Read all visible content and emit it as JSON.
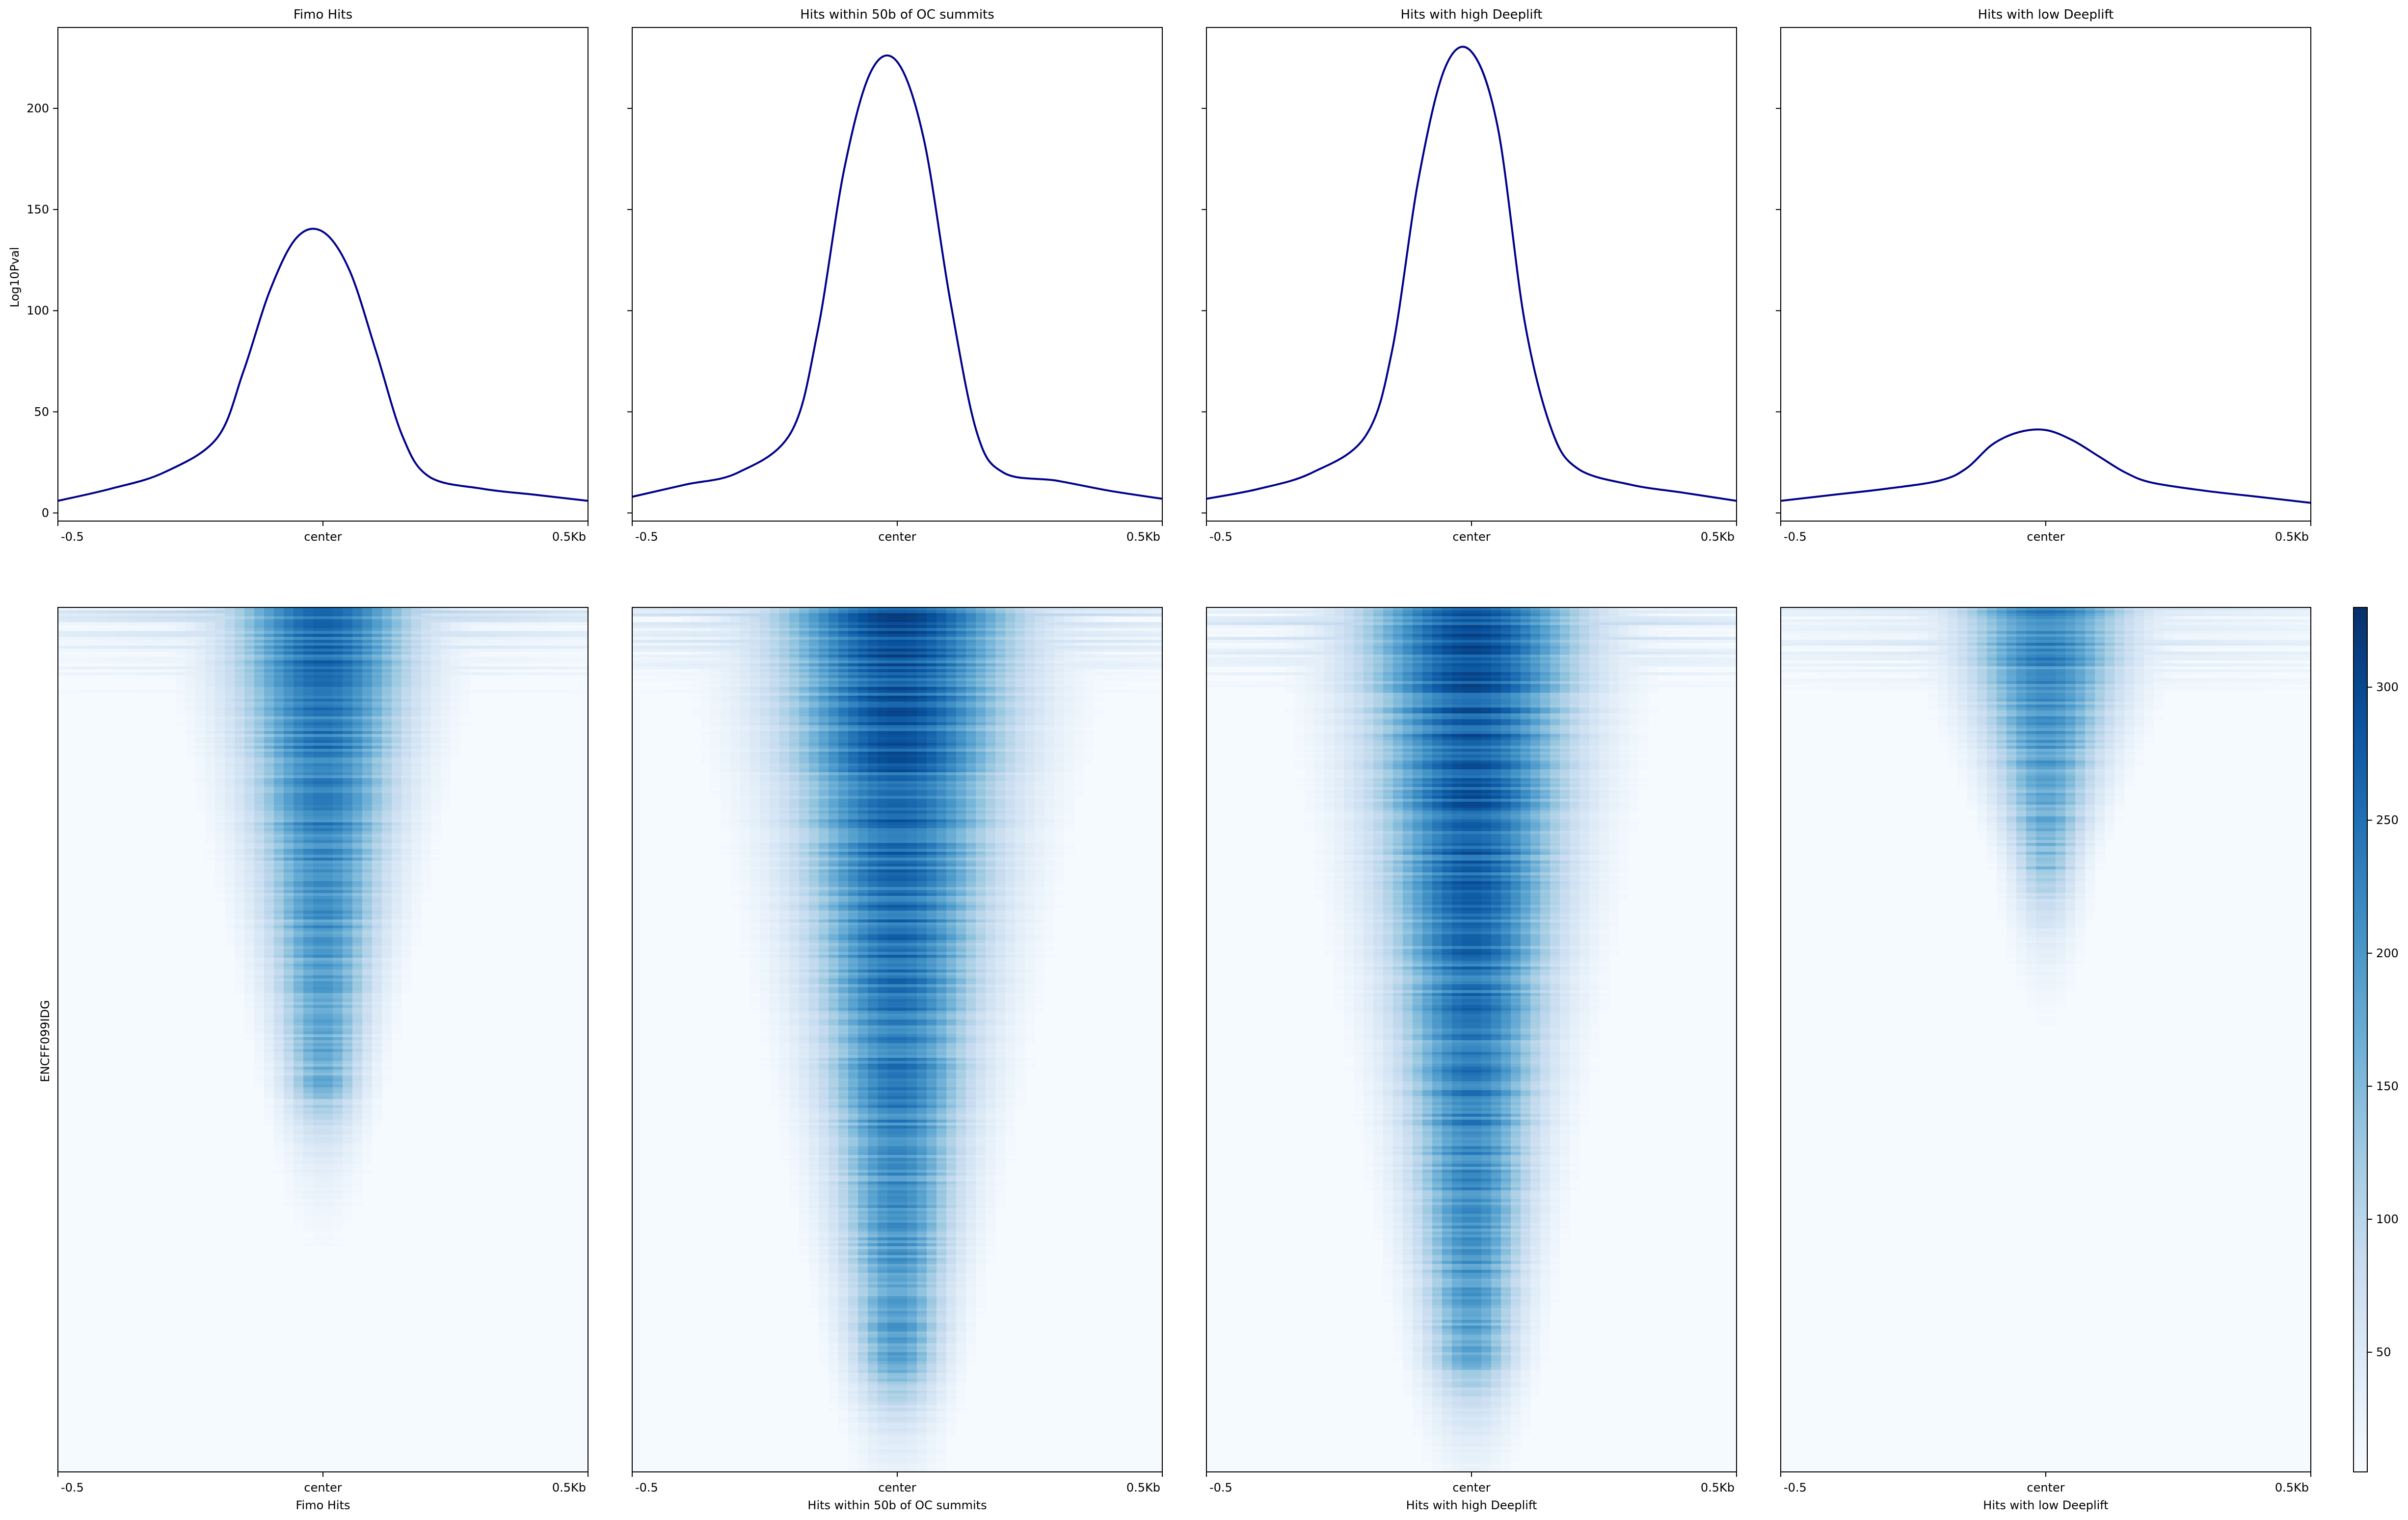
{
  "chart_data": {
    "type": "line",
    "description_panels": 4,
    "x_ticks": [
      "-0.5",
      "center",
      "0.5Kb"
    ],
    "x_range": [
      -500,
      500
    ],
    "profile": {
      "ylabel": "Log10Pval",
      "ylim": [
        -4,
        240
      ],
      "y_ticks": [
        0,
        50,
        100,
        150,
        200
      ],
      "x": [
        -500,
        -400,
        -300,
        -200,
        -150,
        -100,
        -50,
        0,
        50,
        100,
        150,
        200,
        300,
        400,
        500
      ],
      "line_color": "#00008b"
    },
    "heatmap": {
      "ylabel": "ENCFF099IDG",
      "colormap": "Blues",
      "colorbar_ticks": [
        50,
        100,
        150,
        200,
        250,
        300
      ],
      "colorbar_range": [
        5,
        330
      ],
      "colorbar_low": "#f7fbff",
      "colorbar_high": "#08306b"
    },
    "panels": [
      {
        "title": "Fimo Hits",
        "xlabel": "Fimo Hits",
        "y": [
          6,
          12,
          20,
          37,
          70,
          110,
          136,
          139,
          120,
          80,
          38,
          18,
          12,
          9,
          6
        ],
        "heat_peak": 290,
        "heat_halfwidth_top": 0.17,
        "heat_halfwidth_bottom": 0.07,
        "heat_extent": 0.55
      },
      {
        "title": "Hits within 50b of OC summits",
        "xlabel": "Hits within 50b of OC summits",
        "y": [
          8,
          14,
          20,
          40,
          90,
          170,
          218,
          223,
          185,
          105,
          40,
          20,
          16,
          11,
          7
        ],
        "heat_peak": 320,
        "heat_halfwidth_top": 0.22,
        "heat_halfwidth_bottom": 0.08,
        "heat_extent": 0.87
      },
      {
        "title": "Hits with high Deeplift",
        "xlabel": "Hits with high Deeplift",
        "y": [
          7,
          12,
          20,
          38,
          80,
          165,
          220,
          228,
          190,
          95,
          42,
          22,
          14,
          10,
          6
        ],
        "heat_peak": 325,
        "heat_halfwidth_top": 0.2,
        "heat_halfwidth_bottom": 0.08,
        "heat_extent": 0.86
      },
      {
        "title": "Hits with low Deeplift",
        "xlabel": "Hits with low Deeplift",
        "y": [
          6,
          9,
          12,
          16,
          22,
          34,
          40,
          41,
          36,
          28,
          20,
          15,
          11,
          8,
          5
        ],
        "heat_peak": 260,
        "heat_halfwidth_top": 0.16,
        "heat_halfwidth_bottom": 0.06,
        "heat_extent": 0.3
      }
    ]
  }
}
